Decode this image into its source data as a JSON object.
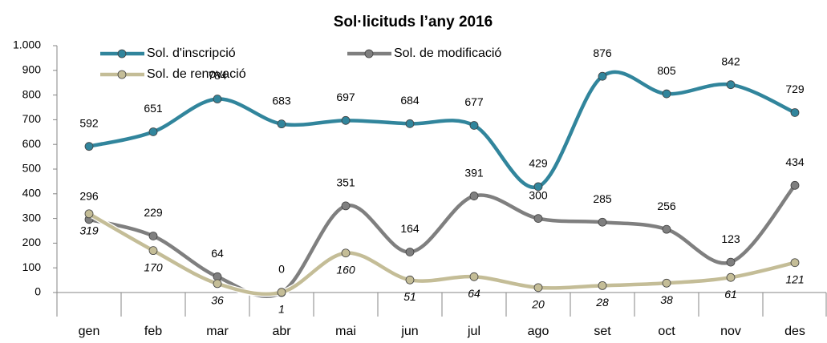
{
  "chart_data": {
    "type": "line",
    "title": "Sol·licituds l’any 2016",
    "categories": [
      "gen",
      "feb",
      "mar",
      "abr",
      "mai",
      "jun",
      "jul",
      "ago",
      "set",
      "oct",
      "nov",
      "des"
    ],
    "series": [
      {
        "name": "Sol. d'inscripció",
        "color": "#31859c",
        "values": [
          592,
          651,
          784,
          683,
          697,
          684,
          677,
          429,
          876,
          805,
          842,
          729
        ]
      },
      {
        "name": "Sol. de modificació",
        "color": "#7f7f7f",
        "values": [
          296,
          229,
          64,
          0,
          351,
          164,
          391,
          300,
          285,
          256,
          123,
          434
        ]
      },
      {
        "name": "Sol. de renovació",
        "color": "#c4bd97",
        "values": [
          319,
          170,
          36,
          1,
          160,
          51,
          64,
          20,
          28,
          38,
          61,
          121
        ]
      }
    ],
    "ylim": [
      0,
      1000
    ],
    "yticks": [
      0,
      100,
      200,
      300,
      400,
      500,
      600,
      700,
      800,
      900,
      {
        "value": 1000,
        "label": "1.000"
      }
    ],
    "legend": "upper left",
    "grid": false,
    "smooth": true
  }
}
